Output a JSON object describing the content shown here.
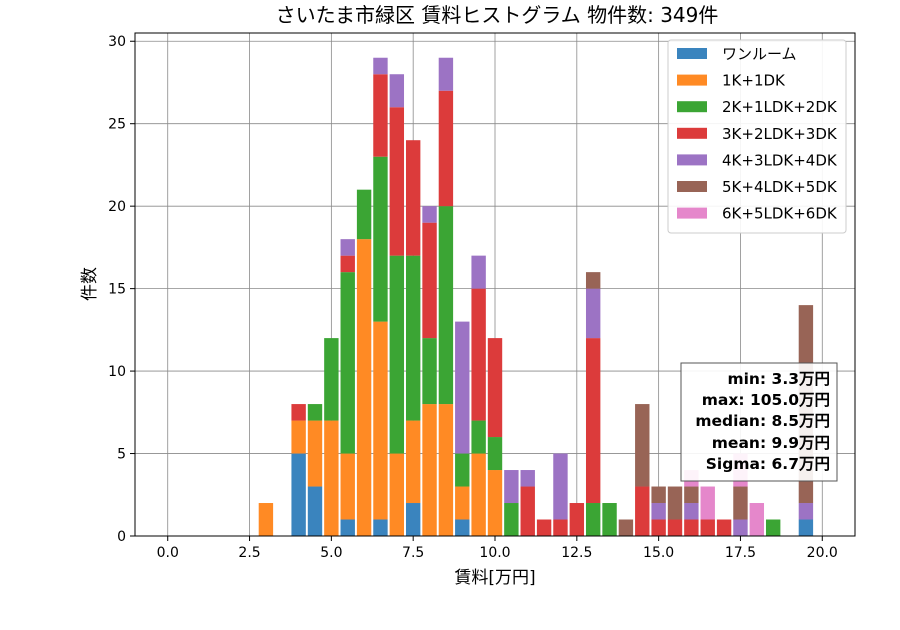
{
  "chart_data": {
    "type": "bar",
    "title": "さいたま市緑区 賃料ヒストグラム 物件数: 349件",
    "xlabel": "賃料[万円]",
    "ylabel": "件数",
    "xlim": [
      -1.0,
      21.0
    ],
    "ylim": [
      0,
      30.5
    ],
    "xticks": [
      0.0,
      2.5,
      5.0,
      7.5,
      10.0,
      12.5,
      15.0,
      17.5,
      20.0
    ],
    "xtick_labels": [
      "0.0",
      "2.5",
      "5.0",
      "7.5",
      "10.0",
      "12.5",
      "15.0",
      "17.5",
      "20.0"
    ],
    "yticks": [
      0,
      5,
      10,
      15,
      20,
      25,
      30
    ],
    "ytick_labels": [
      "0",
      "5",
      "10",
      "15",
      "20",
      "25",
      "30"
    ],
    "grid": true,
    "stacked": true,
    "legend_position": "top-right",
    "bin_width": 0.5,
    "x": [
      3.0,
      4.0,
      4.5,
      5.0,
      5.5,
      6.0,
      6.5,
      7.0,
      7.5,
      8.0,
      8.5,
      9.0,
      9.5,
      10.0,
      10.5,
      11.0,
      11.5,
      12.0,
      12.5,
      13.0,
      13.5,
      14.0,
      14.5,
      15.0,
      15.5,
      16.0,
      16.5,
      17.0,
      17.5,
      18.0,
      18.5,
      19.5
    ],
    "series": [
      {
        "name": "ワンルーム",
        "color": "#3a84be",
        "values": [
          0,
          5,
          3,
          0,
          1,
          0,
          1,
          0,
          2,
          0,
          0,
          1,
          0,
          0,
          0,
          0,
          0,
          0,
          0,
          0,
          0,
          0,
          0,
          0,
          0,
          0,
          0,
          0,
          0,
          0,
          0,
          1
        ]
      },
      {
        "name": "1K+1DK",
        "color": "#ff8a24",
        "values": [
          2,
          2,
          4,
          7,
          4,
          18,
          12,
          5,
          5,
          8,
          8,
          2,
          5,
          4,
          0,
          0,
          0,
          0,
          0,
          0,
          0,
          0,
          0,
          0,
          0,
          0,
          0,
          0,
          0,
          0,
          0,
          0
        ]
      },
      {
        "name": "2K+1LDK+2DK",
        "color": "#3ba534",
        "values": [
          0,
          0,
          1,
          5,
          11,
          3,
          10,
          12,
          10,
          4,
          12,
          2,
          2,
          2,
          2,
          0,
          0,
          0,
          0,
          2,
          2,
          0,
          0,
          0,
          0,
          0,
          0,
          0,
          0,
          0,
          1,
          0
        ]
      },
      {
        "name": "3K+2LDK+3DK",
        "color": "#dc3b3b",
        "values": [
          0,
          1,
          0,
          0,
          1,
          0,
          5,
          9,
          7,
          7,
          7,
          0,
          8,
          6,
          0,
          3,
          1,
          1,
          2,
          10,
          0,
          0,
          3,
          1,
          1,
          1,
          1,
          1,
          0,
          0,
          0,
          0
        ]
      },
      {
        "name": "4K+3LDK+4DK",
        "color": "#9c73c4",
        "values": [
          0,
          0,
          0,
          0,
          1,
          0,
          1,
          2,
          0,
          1,
          2,
          8,
          2,
          0,
          2,
          1,
          0,
          4,
          0,
          3,
          0,
          0,
          0,
          1,
          0,
          1,
          0,
          0,
          1,
          0,
          0,
          1
        ]
      },
      {
        "name": "5K+4LDK+5DK",
        "color": "#986456",
        "values": [
          0,
          0,
          0,
          0,
          0,
          0,
          0,
          0,
          0,
          0,
          0,
          0,
          0,
          0,
          0,
          0,
          0,
          0,
          0,
          1,
          0,
          1,
          5,
          1,
          2,
          1,
          0,
          0,
          2,
          0,
          0,
          12
        ]
      },
      {
        "name": "6K+5LDK+6DK",
        "color": "#e587cb",
        "values": [
          0,
          0,
          0,
          0,
          0,
          0,
          0,
          0,
          0,
          0,
          0,
          0,
          0,
          0,
          0,
          0,
          0,
          0,
          0,
          0,
          0,
          0,
          0,
          0,
          0,
          1,
          2,
          0,
          2,
          2,
          0,
          0
        ]
      }
    ],
    "stats": {
      "min": "min: 3.3万円",
      "max": "max: 105.0万円",
      "median": "median: 8.5万円",
      "mean": "mean: 9.9万円",
      "sigma": "Sigma: 6.7万円"
    }
  }
}
